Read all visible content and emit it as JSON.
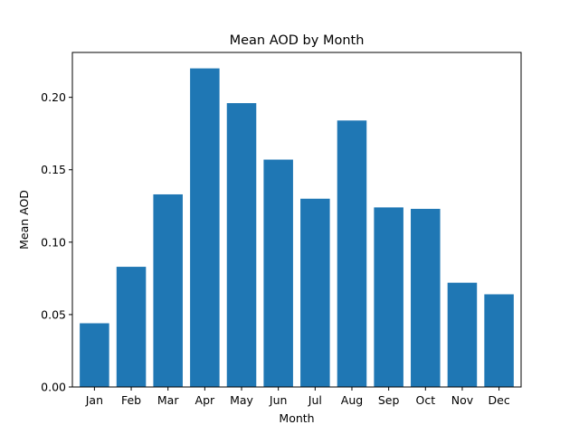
{
  "chart_data": {
    "type": "bar",
    "title": "Mean AOD by Month",
    "xlabel": "Month",
    "ylabel": "Mean AOD",
    "categories": [
      "Jan",
      "Feb",
      "Mar",
      "Apr",
      "May",
      "Jun",
      "Jul",
      "Aug",
      "Sep",
      "Oct",
      "Nov",
      "Dec"
    ],
    "values": [
      0.044,
      0.083,
      0.133,
      0.22,
      0.196,
      0.157,
      0.13,
      0.184,
      0.124,
      0.123,
      0.072,
      0.064
    ],
    "ylim": [
      0,
      0.231
    ],
    "yticks": [
      0.0,
      0.05,
      0.1,
      0.15,
      0.2
    ],
    "ytick_labels": [
      "0.00",
      "0.05",
      "0.10",
      "0.15",
      "0.20"
    ],
    "grid": false,
    "legend": "none",
    "bar_color": "#1f77b4"
  }
}
